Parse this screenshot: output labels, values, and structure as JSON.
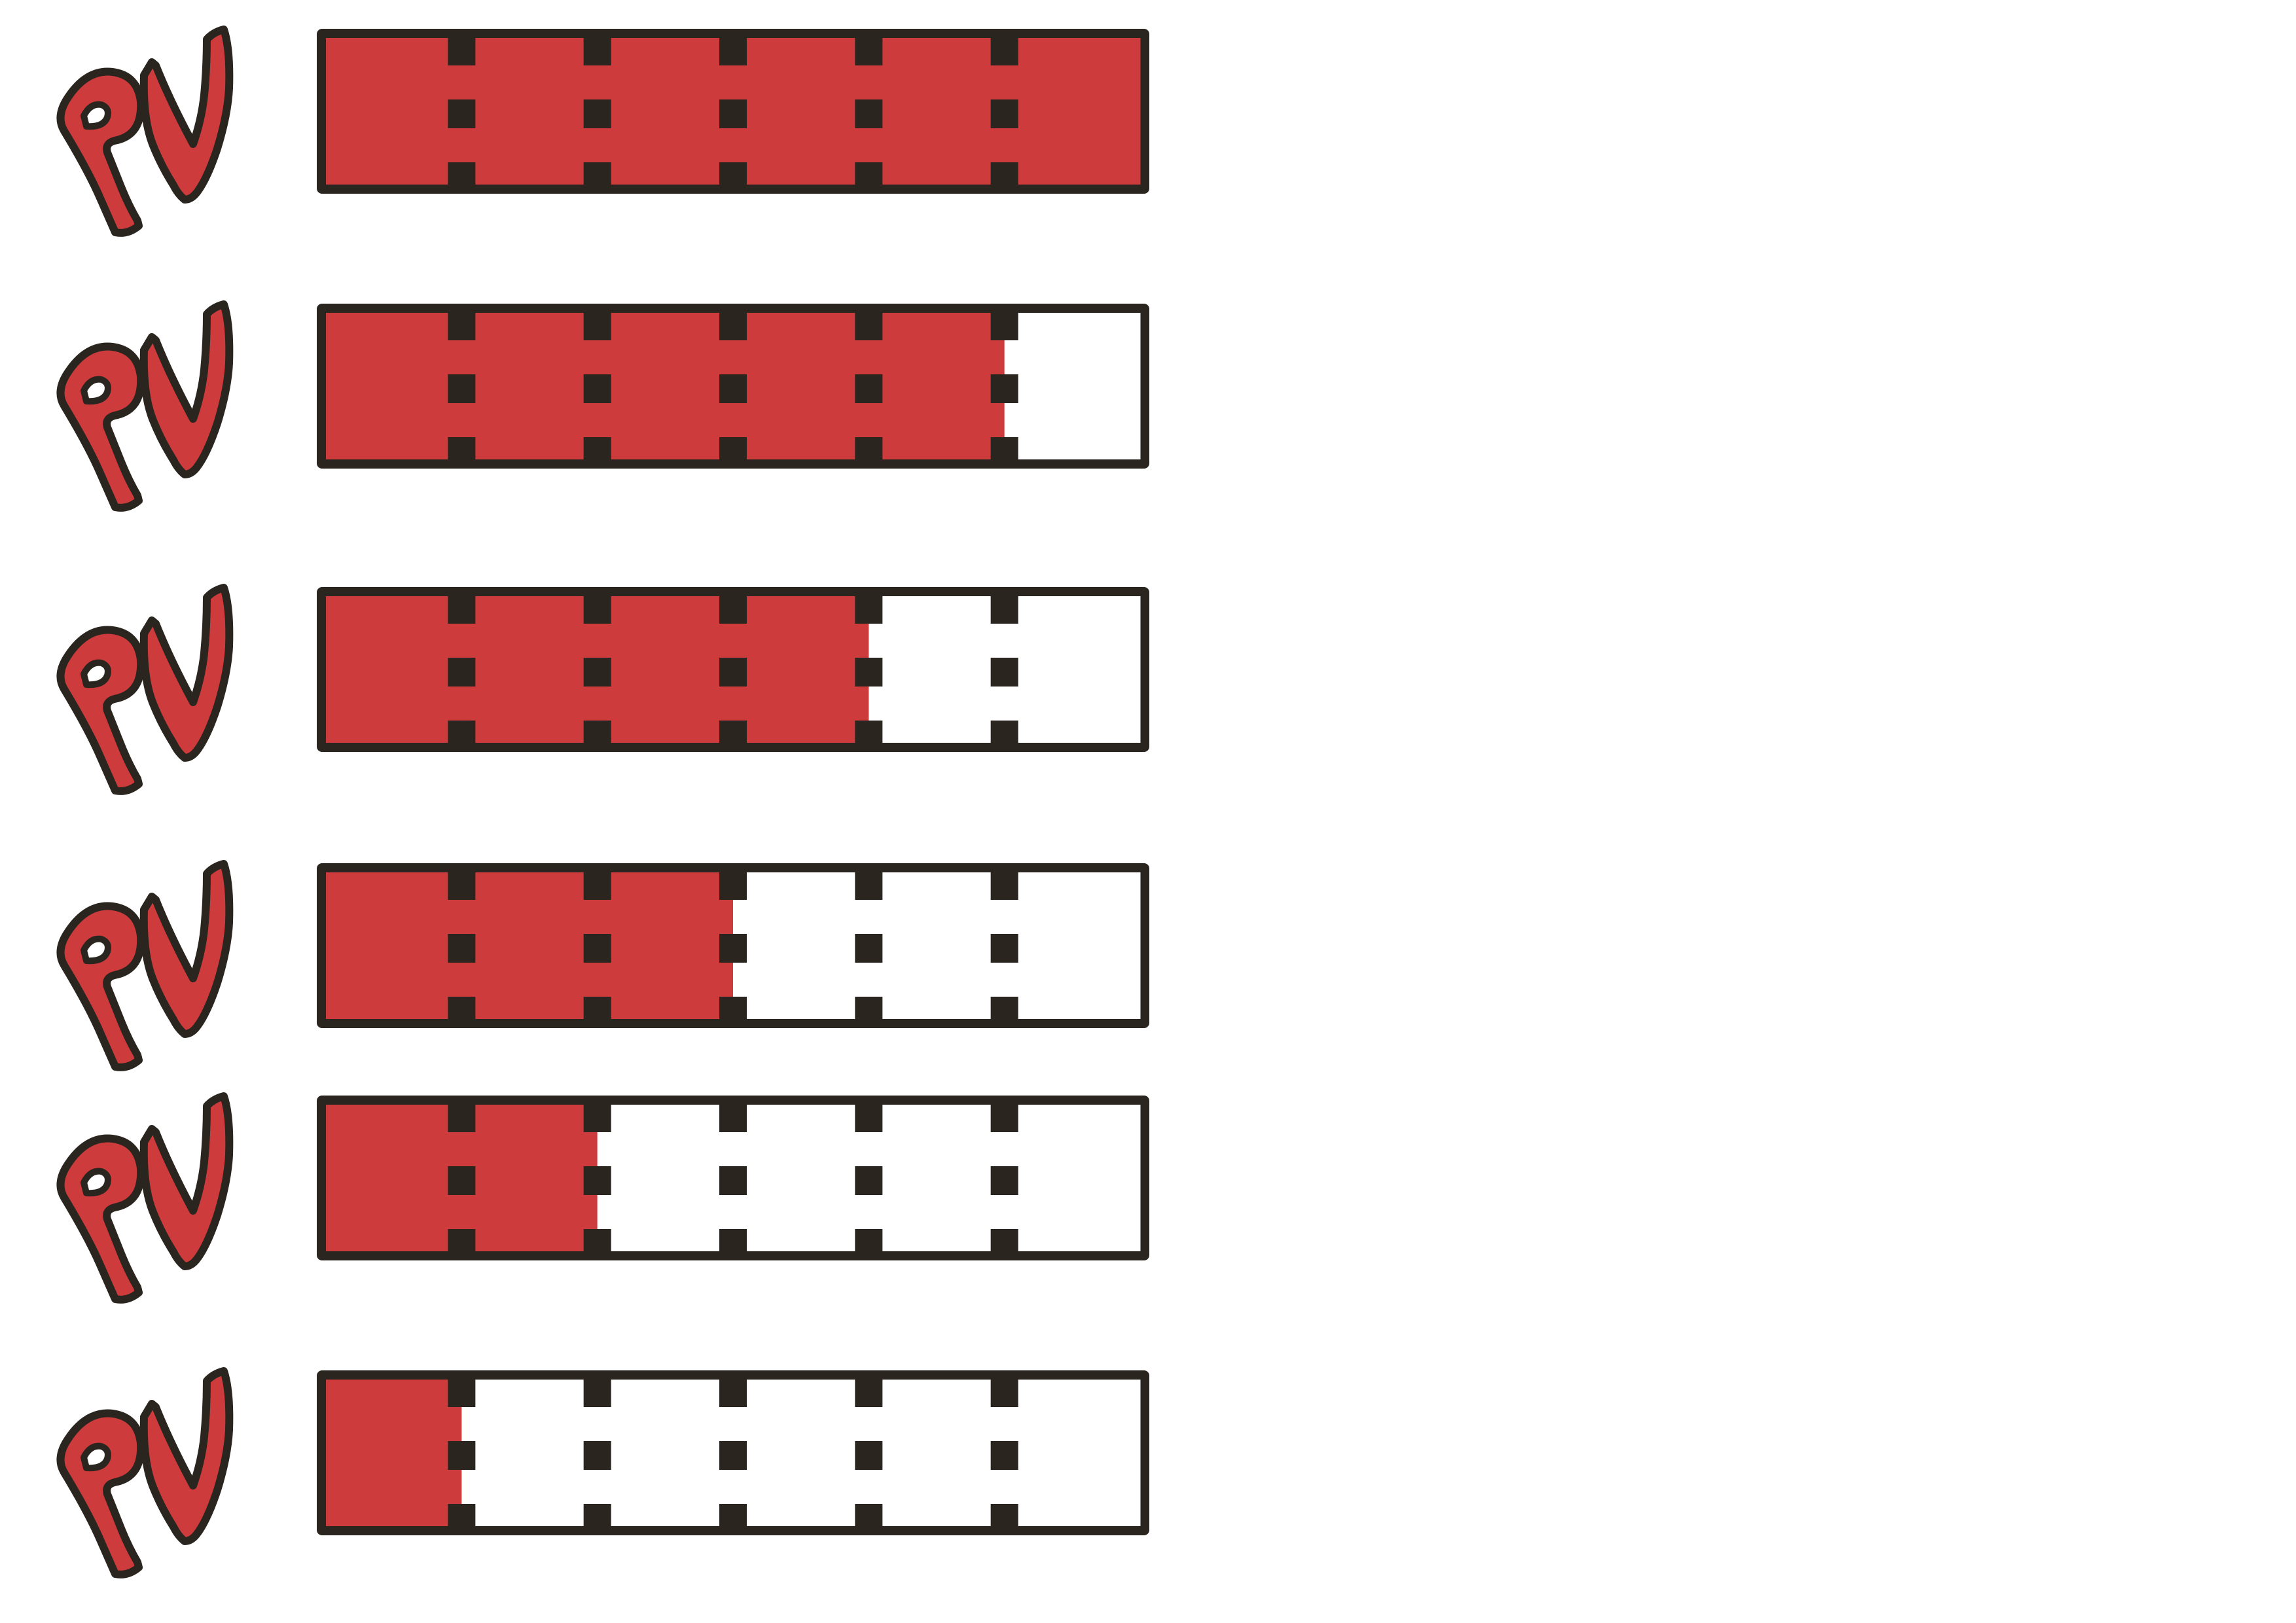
{
  "logo": {
    "text": "PV",
    "icon": "pv-hp-label-icon"
  },
  "colors": {
    "fill": "#cd3b3d",
    "outline": "#2a251e",
    "empty": "#ffffff"
  },
  "bar": {
    "segments": 6
  },
  "meters": [
    {
      "id": "pv-6",
      "filled_segments": 6
    },
    {
      "id": "pv-5",
      "filled_segments": 5
    },
    {
      "id": "pv-4",
      "filled_segments": 4
    },
    {
      "id": "pv-3",
      "filled_segments": 3
    },
    {
      "id": "pv-2",
      "filled_segments": 2
    },
    {
      "id": "pv-1",
      "filled_segments": 1
    }
  ]
}
